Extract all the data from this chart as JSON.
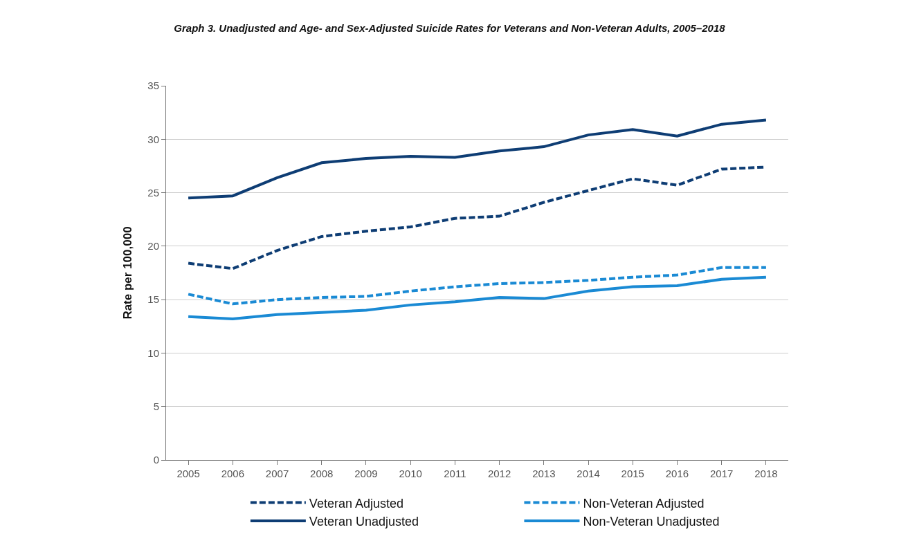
{
  "chart_data": {
    "type": "line",
    "title": "Graph 3. Unadjusted and Age- and Sex-Adjusted Suicide Rates for Veterans and Non-Veteran Adults, 2005–2018",
    "ylabel": "Rate per 100,000",
    "categories": [
      "2005",
      "2006",
      "2007",
      "2008",
      "2009",
      "2010",
      "2011",
      "2012",
      "2013",
      "2014",
      "2015",
      "2016",
      "2017",
      "2018"
    ],
    "series": [
      {
        "name": "Veteran Adjusted",
        "color": "#0e3d74",
        "line_style": "dashed",
        "values": [
          18.4,
          17.9,
          19.6,
          20.9,
          21.4,
          21.8,
          22.6,
          22.8,
          24.1,
          25.2,
          26.3,
          25.7,
          27.2,
          27.4
        ]
      },
      {
        "name": "Non-Veteran Adjusted",
        "color": "#1a8ad4",
        "line_style": "dashed",
        "values": [
          15.5,
          14.6,
          15.0,
          15.2,
          15.3,
          15.8,
          16.2,
          16.5,
          16.6,
          16.8,
          17.1,
          17.3,
          18.0,
          18.0
        ]
      },
      {
        "name": "Veteran Unadjusted",
        "color": "#0e3d74",
        "line_style": "solid",
        "values": [
          24.5,
          24.7,
          26.4,
          27.8,
          28.2,
          28.4,
          28.3,
          28.9,
          29.3,
          30.4,
          30.9,
          30.3,
          31.4,
          31.8
        ]
      },
      {
        "name": "Non-Veteran Unadjusted",
        "color": "#1a8ad4",
        "line_style": "solid",
        "values": [
          13.4,
          13.2,
          13.6,
          13.8,
          14.0,
          14.5,
          14.8,
          15.2,
          15.1,
          15.8,
          16.2,
          16.3,
          16.9,
          17.1
        ]
      }
    ],
    "ylim": [
      0,
      35
    ],
    "yticks": [
      0,
      5,
      10,
      15,
      20,
      25,
      30,
      35
    ],
    "grid": "y",
    "legend": "bottom",
    "marker": "none"
  }
}
